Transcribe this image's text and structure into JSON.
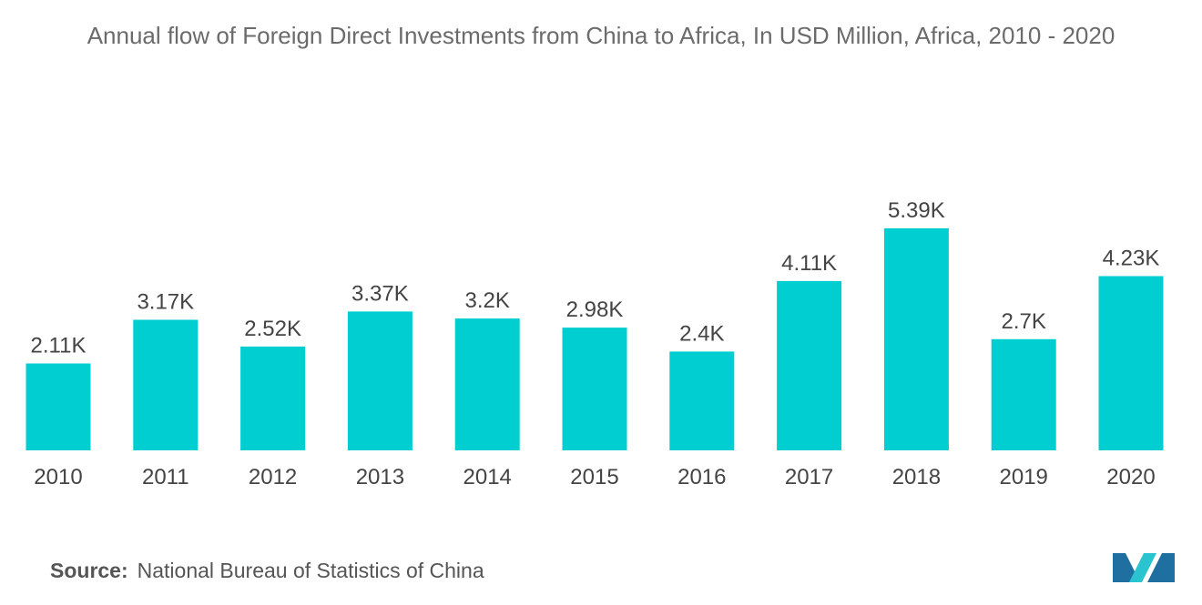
{
  "header": {
    "title": "Annual flow of Foreign Direct Investments from China to Africa, In USD Million, Africa, 2010 - 2020"
  },
  "footer": {
    "source_key": "Source:",
    "source_value": "National Bureau of Statistics of China"
  },
  "logo": {
    "icon": "mordor-intelligence-logo-icon"
  },
  "colors": {
    "bar": "#00CED1",
    "logo_dark": "#1F6FA0",
    "logo_light": "#29C4CF"
  },
  "chart_data": {
    "type": "bar",
    "title": "Annual flow of Foreign Direct Investments from China to Africa, In USD Million, Africa, 2010 - 2020",
    "xlabel": "",
    "ylabel": "",
    "categories": [
      "2010",
      "2011",
      "2012",
      "2013",
      "2014",
      "2015",
      "2016",
      "2017",
      "2018",
      "2019",
      "2020"
    ],
    "values": [
      2110,
      3170,
      2520,
      3370,
      3200,
      2980,
      2400,
      4110,
      5390,
      2700,
      4230
    ],
    "value_labels": [
      "2.11K",
      "3.17K",
      "2.52K",
      "3.37K",
      "3.2K",
      "2.98K",
      "2.4K",
      "4.11K",
      "5.39K",
      "2.7K",
      "4.23K"
    ],
    "ylim": [
      0,
      5390
    ],
    "grid": false,
    "legend": "none"
  }
}
